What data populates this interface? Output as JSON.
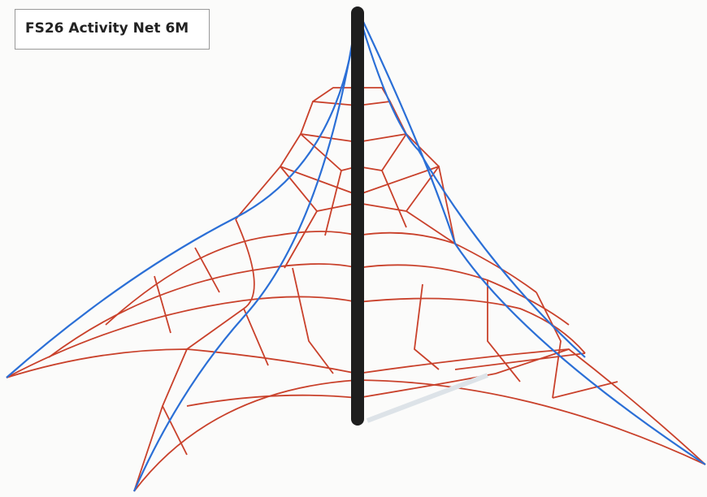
{
  "label": "FS26 Activity Net 6M"
}
